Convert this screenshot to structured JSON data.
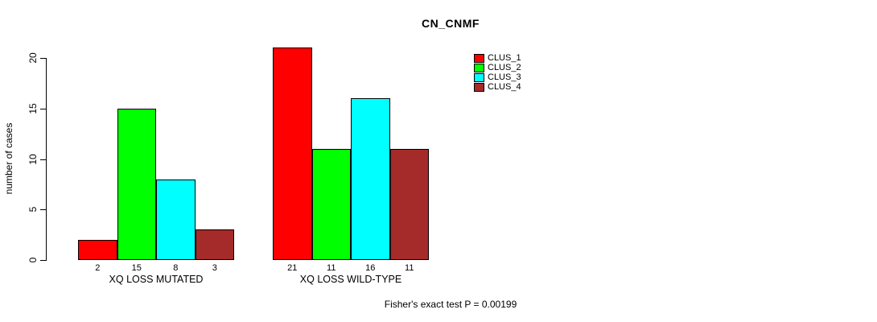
{
  "chart_data": {
    "type": "bar",
    "title": "CN_CNMF",
    "xlabel": "",
    "ylabel": "number of cases",
    "ylim": [
      0,
      20
    ],
    "yticks": [
      0,
      5,
      10,
      15,
      20
    ],
    "grid": false,
    "legend_position": "top-right",
    "bar_value_labels_shown": true,
    "categories": [
      "XQ LOSS MUTATED",
      "XQ LOSS WILD-TYPE"
    ],
    "series": [
      {
        "name": "CLUS_1",
        "color": "#ff0000",
        "values": [
          2,
          21
        ]
      },
      {
        "name": "CLUS_2",
        "color": "#00ff00",
        "values": [
          15,
          11
        ]
      },
      {
        "name": "CLUS_3",
        "color": "#00ffff",
        "values": [
          8,
          16
        ]
      },
      {
        "name": "CLUS_4",
        "color": "#a52a2a",
        "values": [
          3,
          11
        ]
      }
    ],
    "annotation": "Fisher's exact test P = 0.00199",
    "colors": {
      "bar_border": "#000000",
      "axis": "#000000",
      "text": "#000000",
      "background": "#ffffff"
    }
  }
}
